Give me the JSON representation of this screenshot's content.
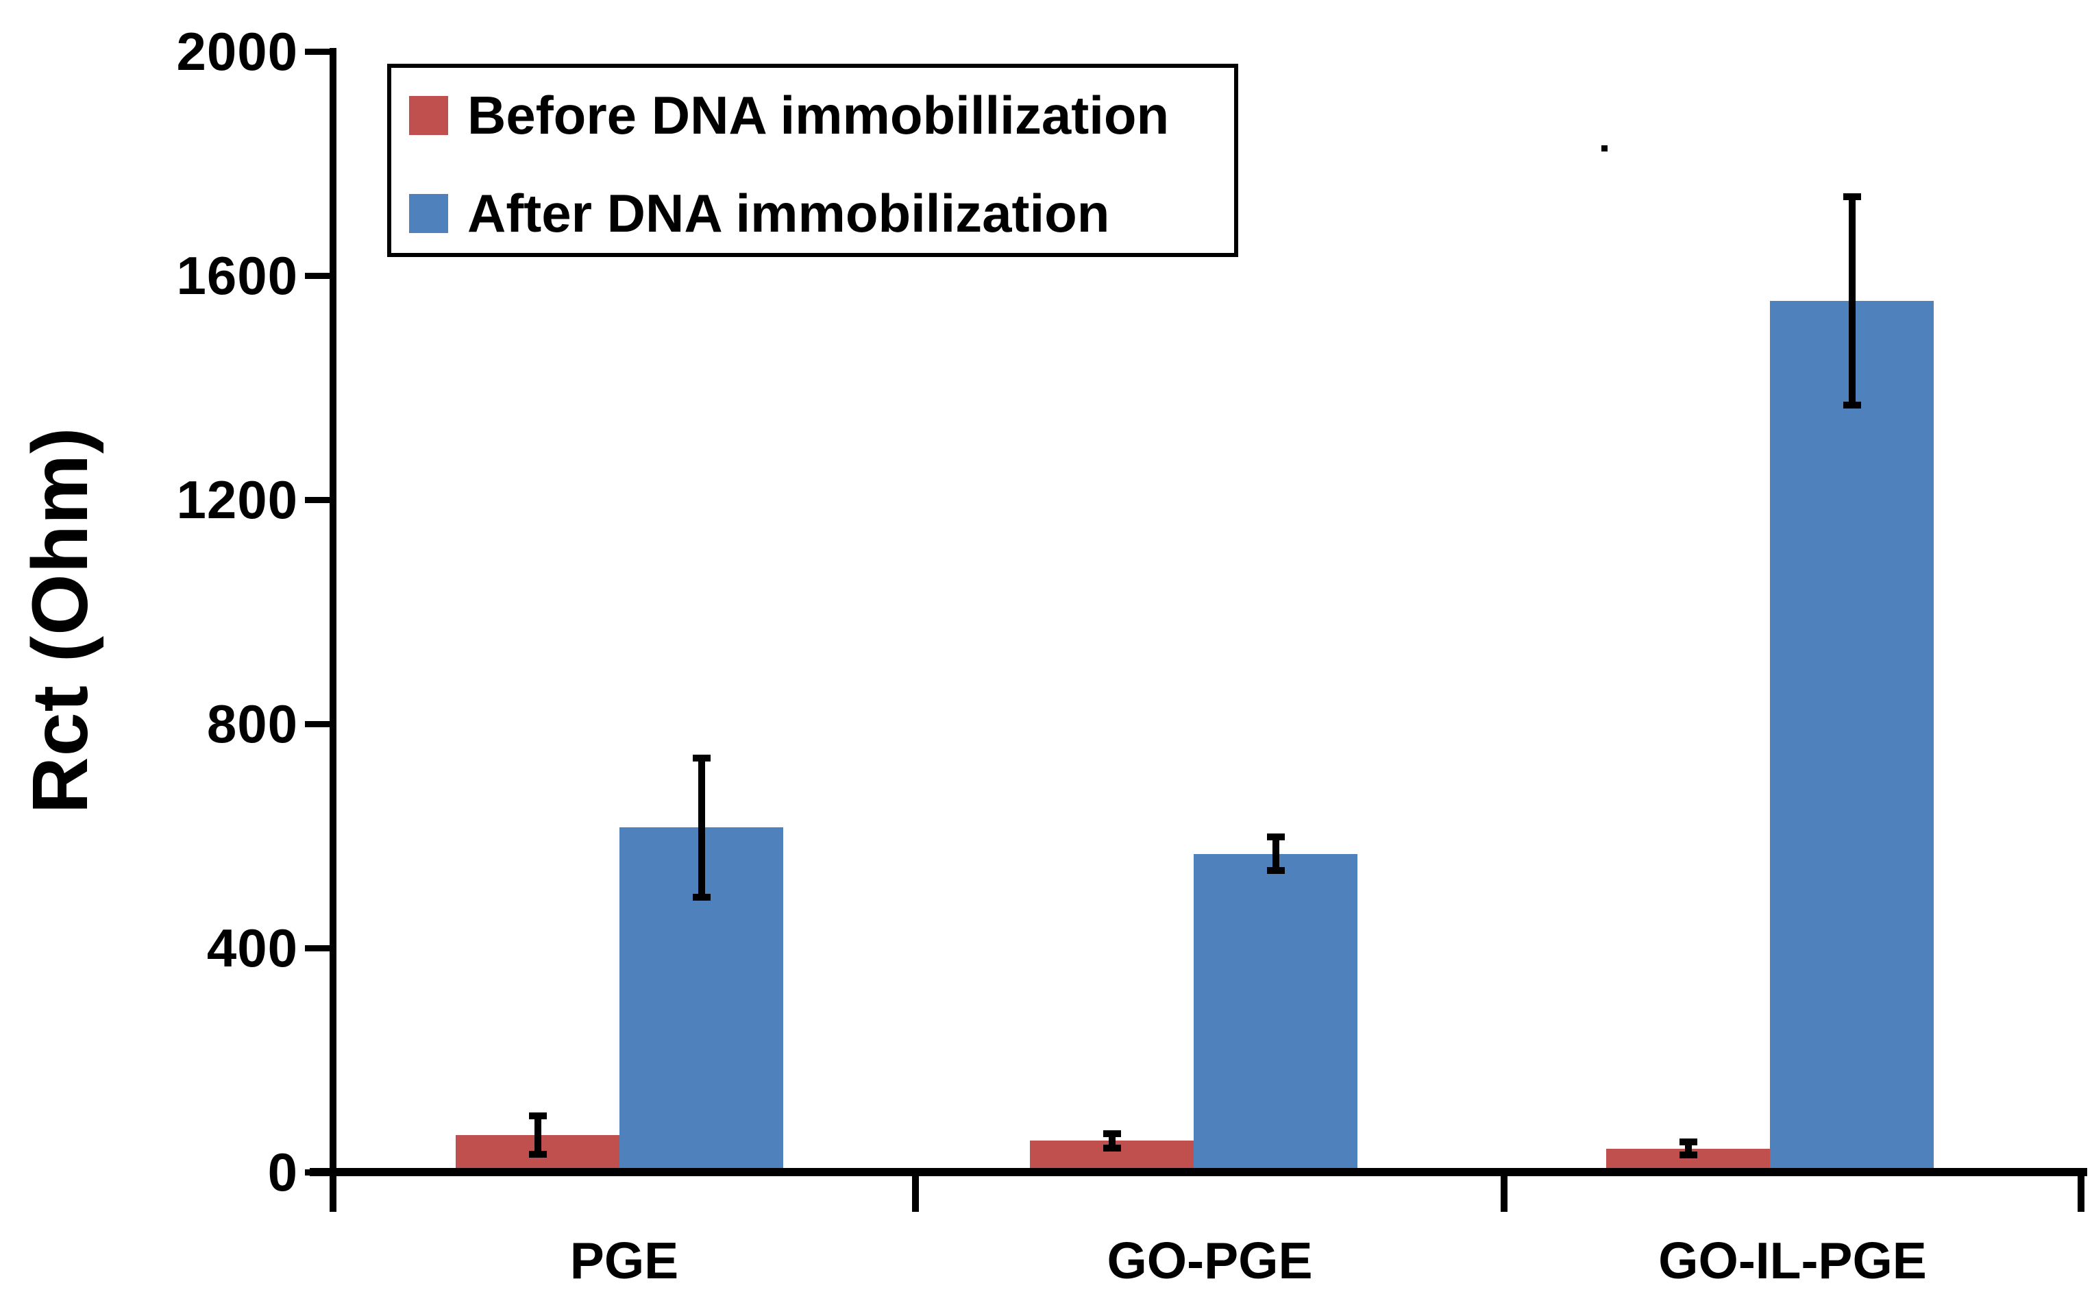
{
  "figure": {
    "background": "#ffffff",
    "text_color": "#000000",
    "has_stray_dot_artifact": true
  },
  "chart_data": {
    "type": "bar",
    "title": "",
    "xlabel": "",
    "ylabel": "Rct (Ohm)",
    "categories": [
      "PGE",
      "GO-PGE",
      "GO-IL-PGE"
    ],
    "series": [
      {
        "name": "Before DNA immobillization",
        "color": "#C0504D",
        "values": [
          66,
          56,
          42
        ],
        "errors": [
          40,
          19,
          18
        ]
      },
      {
        "name": "After DNA immobilization",
        "color": "#4F81BD",
        "values": [
          615,
          568,
          1555
        ],
        "errors": [
          130,
          36,
          192
        ]
      }
    ],
    "y_axis": {
      "min": 0,
      "max": 2000,
      "tick_step": 400,
      "tick_labels": [
        "0",
        "400",
        "800",
        "1200",
        "1600",
        "2000"
      ]
    },
    "ylim": [
      0,
      2000
    ],
    "grid": false,
    "error_bars": true,
    "legend": {
      "position": "top-left",
      "border": true,
      "entries": [
        "Before DNA immobillization",
        "After DNA immobilization"
      ]
    }
  }
}
